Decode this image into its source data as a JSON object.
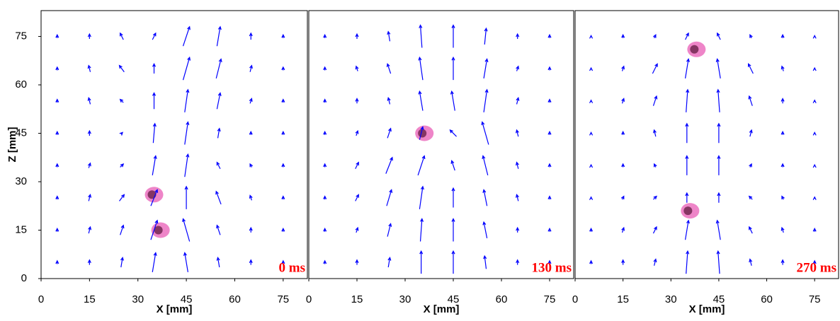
{
  "chart_data": [
    {
      "type": "quiver",
      "xlabel": "X [mm]",
      "ylabel": "Z [mm]",
      "annotation": "0 ms",
      "annotation_color": "#ff0000",
      "xlim": [
        0,
        82.5
      ],
      "ylim": [
        0,
        83
      ],
      "xticks": [
        0,
        15,
        30,
        45,
        60,
        75
      ],
      "yticks": [
        0,
        15,
        30,
        45,
        60,
        75
      ],
      "color": "#0000ff",
      "x_grid": [
        5,
        15,
        25,
        35,
        45,
        55,
        65,
        75
      ],
      "z_grid": [
        5,
        15,
        25,
        35,
        45,
        55,
        65,
        75
      ],
      "u": [
        [
          0,
          0,
          0.5,
          1,
          -1,
          -0.5,
          0,
          0
        ],
        [
          0,
          0.5,
          1,
          2,
          -2,
          -1,
          0,
          0
        ],
        [
          0,
          0.5,
          1.5,
          2,
          0,
          -1.5,
          -0.5,
          0
        ],
        [
          0,
          0.5,
          1,
          1,
          1,
          -1,
          -0.5,
          0
        ],
        [
          0,
          0,
          0.5,
          0.5,
          1,
          0.5,
          0,
          0
        ],
        [
          0,
          -0.5,
          -1,
          0,
          1,
          1,
          0.5,
          0
        ],
        [
          0,
          -0.5,
          -1.5,
          0,
          2,
          1.5,
          0.5,
          0
        ],
        [
          0,
          0,
          -1,
          1,
          2,
          1,
          0,
          0
        ]
      ],
      "w": [
        [
          1,
          1.5,
          3,
          6,
          6,
          3,
          1.5,
          1
        ],
        [
          1,
          2,
          3,
          6,
          7,
          3,
          1.5,
          1
        ],
        [
          1,
          2,
          2,
          5,
          7,
          4,
          1.5,
          1
        ],
        [
          1,
          1.5,
          1,
          6,
          7,
          2,
          1,
          1
        ],
        [
          1,
          1.5,
          0.5,
          6,
          7,
          3,
          1,
          1
        ],
        [
          1,
          2,
          1,
          5,
          7,
          5,
          1.5,
          1
        ],
        [
          1,
          2,
          2,
          3,
          7,
          6,
          2,
          1
        ],
        [
          1,
          1.5,
          2,
          2,
          6,
          6,
          2,
          1
        ]
      ],
      "bubbles": {
        "color": "#e0209a",
        "x": [
          35,
          37
        ],
        "z": [
          26,
          15
        ]
      }
    },
    {
      "type": "quiver",
      "xlabel": "X [mm]",
      "annotation": "130 ms",
      "annotation_color": "#ff0000",
      "xlim": [
        0,
        82.5
      ],
      "ylim": [
        0,
        83
      ],
      "xticks": [
        0,
        15,
        30,
        45,
        60,
        75
      ],
      "color": "#0000ff",
      "x_grid": [
        5,
        15,
        25,
        35,
        45,
        55,
        65,
        75
      ],
      "z_grid": [
        5,
        15,
        25,
        35,
        45,
        55,
        65,
        75
      ],
      "u": [
        [
          0,
          0,
          0.5,
          0,
          0,
          -0.5,
          0,
          0
        ],
        [
          0,
          0.5,
          1,
          0.5,
          0,
          -1,
          0,
          0
        ],
        [
          0,
          1,
          1.5,
          1,
          0,
          -1,
          -0.5,
          0
        ],
        [
          0,
          1,
          2,
          2,
          -1,
          -1.5,
          -0.5,
          0
        ],
        [
          0,
          0.5,
          1,
          1,
          -2,
          -2,
          -0.5,
          0
        ],
        [
          0,
          0,
          -0.5,
          -1,
          -1,
          1,
          0.5,
          0
        ],
        [
          0,
          -0.5,
          -1,
          -1,
          0,
          1,
          0.5,
          0
        ],
        [
          0,
          0,
          -0.5,
          -0.5,
          0,
          0.5,
          0,
          0
        ]
      ],
      "w": [
        [
          1,
          1.5,
          3,
          7,
          7,
          4,
          1.5,
          1
        ],
        [
          1,
          1.5,
          4,
          7,
          7,
          5,
          1.5,
          1
        ],
        [
          1,
          2,
          5,
          7,
          6,
          5,
          2,
          1
        ],
        [
          1,
          2,
          5,
          6,
          3,
          6,
          2,
          1
        ],
        [
          1,
          1.5,
          3,
          4,
          2,
          7,
          2,
          1
        ],
        [
          1,
          1.5,
          2,
          6,
          6,
          7,
          2,
          1
        ],
        [
          1,
          1.5,
          3,
          7,
          7,
          6,
          1.5,
          1
        ],
        [
          1,
          1.5,
          3,
          7,
          7,
          5,
          1.5,
          1
        ]
      ],
      "bubbles": {
        "color": "#e0209a",
        "x": [
          36
        ],
        "z": [
          45
        ]
      }
    },
    {
      "type": "quiver",
      "xlabel": "X [mm]",
      "annotation": "270 ms",
      "annotation_color": "#ff0000",
      "xlim": [
        0,
        82.5
      ],
      "ylim": [
        0,
        83
      ],
      "xticks": [
        0,
        15,
        30,
        45,
        60,
        75
      ],
      "color": "#0000ff",
      "x_grid": [
        5,
        15,
        25,
        35,
        45,
        55,
        65,
        75
      ],
      "z_grid": [
        5,
        15,
        25,
        35,
        45,
        55,
        65,
        75
      ],
      "u": [
        [
          0,
          0,
          0.5,
          0.5,
          -0.5,
          -0.5,
          0,
          0
        ],
        [
          0,
          0.5,
          1,
          1,
          -1,
          -1,
          -0.5,
          0
        ],
        [
          0,
          0.5,
          1,
          0,
          0,
          -1,
          -0.5,
          0
        ],
        [
          0,
          0,
          -0.5,
          0,
          0,
          0.5,
          0,
          0
        ],
        [
          0,
          0,
          -0.5,
          0,
          0,
          0.5,
          0,
          0
        ],
        [
          0,
          0.5,
          1,
          0.5,
          -0.5,
          -1,
          0,
          0
        ],
        [
          0,
          0.5,
          1.5,
          1,
          -1,
          -1.5,
          -0.5,
          0
        ],
        [
          0,
          0,
          0.5,
          1,
          -1,
          -0.5,
          0,
          0
        ]
      ],
      "w": [
        [
          1,
          1.5,
          2,
          7,
          7,
          2,
          1.5,
          1
        ],
        [
          1,
          1.5,
          2,
          6,
          6,
          2,
          1.5,
          1
        ],
        [
          0.5,
          1,
          1,
          3,
          3,
          1,
          1,
          0.5
        ],
        [
          0.5,
          1,
          1,
          6,
          6,
          1,
          1,
          0.5
        ],
        [
          0.5,
          1,
          2,
          6,
          6,
          2,
          1,
          0.5
        ],
        [
          0.5,
          1.5,
          3,
          7,
          7,
          3,
          1.5,
          0.5
        ],
        [
          0.5,
          1.5,
          3,
          6,
          6,
          3,
          1.5,
          0.5
        ],
        [
          0.5,
          1,
          1,
          2,
          2,
          1,
          1,
          0.5
        ]
      ],
      "bubbles": {
        "color": "#e0209a",
        "x": [
          38,
          36
        ],
        "z": [
          71,
          21
        ]
      }
    }
  ]
}
